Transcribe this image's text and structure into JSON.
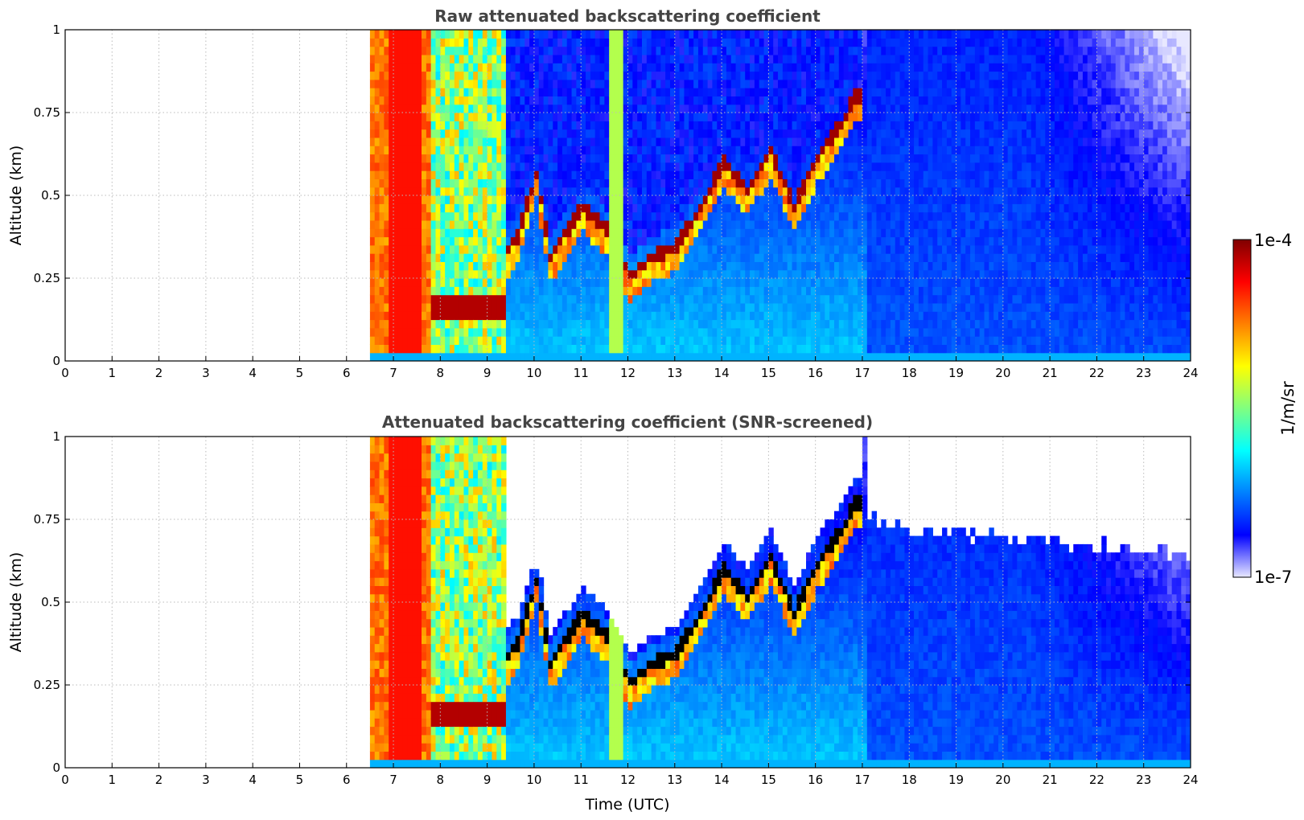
{
  "colors": {
    "colormap": [
      "#e8e8ff",
      "#0000ff",
      "#0080ff",
      "#00ffff",
      "#80ff80",
      "#ffff00",
      "#ff8000",
      "#ff0000",
      "#800000"
    ],
    "grid": "#bbbbbb",
    "title": "#444444"
  },
  "xlabel": "Time (UTC)",
  "colorbar": {
    "label": "1/m/sr",
    "max_label": "1e-4",
    "min_label": "1e-7",
    "scale": "log"
  },
  "chart_data": [
    {
      "type": "heatmap",
      "title": "Raw attenuated backscattering coefficient",
      "xlabel": "",
      "ylabel": "Altitude (km)",
      "xlim": [
        0,
        24
      ],
      "ylim": [
        0,
        1
      ],
      "x_ticks": [
        "0",
        "1",
        "2",
        "3",
        "4",
        "5",
        "6",
        "7",
        "8",
        "9",
        "10",
        "11",
        "12",
        "13",
        "14",
        "15",
        "16",
        "17",
        "18",
        "19",
        "20",
        "21",
        "22",
        "23",
        "24"
      ],
      "y_ticks": [
        "0",
        "0.25",
        "0.5",
        "0.75",
        "1"
      ],
      "grid": true,
      "data_start_x": 6.5,
      "screened": false,
      "cloud_layer": {
        "x": [
          9.0,
          9.3,
          9.6,
          10.0,
          10.3,
          11.0,
          11.5,
          12.0,
          12.5,
          13.0,
          13.5,
          14.0,
          14.5,
          15.0,
          15.5,
          16.0,
          16.5,
          16.8
        ],
        "y_km": [
          0.27,
          0.3,
          0.36,
          0.55,
          0.3,
          0.45,
          0.38,
          0.24,
          0.3,
          0.33,
          0.45,
          0.58,
          0.5,
          0.62,
          0.45,
          0.6,
          0.7,
          0.78
        ]
      },
      "low_layer": {
        "x": [
          6.5,
          9.3
        ],
        "y_km": [
          0.16,
          0.16
        ]
      }
    },
    {
      "type": "heatmap",
      "title": "Attenuated backscattering coefficient (SNR-screened)",
      "xlabel": "Time (UTC)",
      "ylabel": "Altitude (km)",
      "xlim": [
        0,
        24
      ],
      "ylim": [
        0,
        1
      ],
      "x_ticks": [
        "0",
        "1",
        "2",
        "3",
        "4",
        "5",
        "6",
        "7",
        "8",
        "9",
        "10",
        "11",
        "12",
        "13",
        "14",
        "15",
        "16",
        "17",
        "18",
        "19",
        "20",
        "21",
        "22",
        "23",
        "24"
      ],
      "y_ticks": [
        "0",
        "0.25",
        "0.5",
        "0.75",
        "1"
      ],
      "grid": true,
      "data_start_x": 6.5,
      "screened": true,
      "cloud_layer": {
        "x": [
          9.0,
          9.3,
          9.6,
          10.0,
          10.3,
          11.0,
          11.5,
          12.0,
          12.5,
          13.0,
          13.5,
          14.0,
          14.5,
          15.0,
          15.5,
          16.0,
          16.5,
          16.8
        ],
        "y_km": [
          0.27,
          0.3,
          0.36,
          0.55,
          0.3,
          0.45,
          0.38,
          0.24,
          0.3,
          0.33,
          0.45,
          0.58,
          0.5,
          0.62,
          0.45,
          0.6,
          0.7,
          0.78
        ]
      },
      "low_layer": {
        "x": [
          6.5,
          9.3
        ],
        "y_km": [
          0.16,
          0.16
        ]
      }
    }
  ]
}
